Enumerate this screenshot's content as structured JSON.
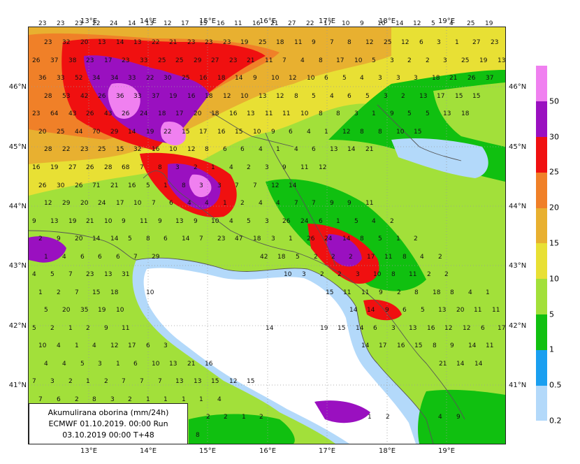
{
  "title_box": {
    "line1": "Akumulirana oborina (mm/24h)",
    "line2": "ECMWF 01.10.2019.  00:00 Run",
    "line3": "03.10.2019 00:00  T+48"
  },
  "axes": {
    "lat_labels": [
      "46°N",
      "45°N",
      "44°N",
      "43°N",
      "42°N",
      "41°N"
    ],
    "lon_labels": [
      "13°E",
      "14°E",
      "15°E",
      "16°E",
      "17°E",
      "18°E",
      "19°E"
    ]
  },
  "colorbar": {
    "labels": [
      "0.2",
      "0.5",
      "1",
      "5",
      "10",
      "15",
      "20",
      "25",
      "30",
      "50"
    ],
    "colors": [
      "#b3d9fa",
      "#1a9ff0",
      "#10c010",
      "#a2e03a",
      "#e8e034",
      "#e8b030",
      "#f08028",
      "#f01010",
      "#9a10c0",
      "#f080f0"
    ]
  },
  "colors": {
    "sea": "#ffffff",
    "land_base": "#7ed65a",
    "coast": "#555555",
    "grid": "#9a9a9a"
  },
  "numbers": [
    "23",
    "23",
    "23",
    "22",
    "24",
    "14",
    "13",
    "12",
    "17",
    "15",
    "16",
    "11",
    "16",
    "21",
    "27",
    "22",
    "17",
    "10",
    "9",
    "10",
    "14",
    "12",
    "5",
    "4",
    "25",
    "19",
    "23",
    "32",
    "20",
    "13",
    "14",
    "13",
    "22",
    "21",
    "23",
    "23",
    "23",
    "19",
    "25",
    "18",
    "11",
    "9",
    "7",
    "8",
    "12",
    "25",
    "12",
    "6",
    "3",
    "1",
    "27",
    "23",
    "26",
    "37",
    "38",
    "23",
    "17",
    "23",
    "33",
    "25",
    "25",
    "29",
    "27",
    "23",
    "21",
    "11",
    "7",
    "4",
    "8",
    "17",
    "10",
    "5",
    "3",
    "2",
    "2",
    "3",
    "25",
    "19",
    "13",
    "36",
    "33",
    "52",
    "34",
    "34",
    "33",
    "22",
    "30",
    "25",
    "16",
    "18",
    "14",
    "9",
    "10",
    "12",
    "10",
    "6",
    "5",
    "4",
    "3",
    "3",
    "3",
    "18",
    "21",
    "26",
    "37",
    "28",
    "53",
    "42",
    "26",
    "36",
    "33",
    "37",
    "19",
    "16",
    "18",
    "12",
    "10",
    "13",
    "12",
    "8",
    "5",
    "4",
    "6",
    "5",
    "3",
    "2",
    "13",
    "17",
    "15",
    "15",
    "23",
    "64",
    "43",
    "26",
    "43",
    "26",
    "24",
    "18",
    "17",
    "20",
    "18",
    "16",
    "13",
    "11",
    "11",
    "10",
    "8",
    "8",
    "3",
    "1",
    "9",
    "5",
    "5",
    "13",
    "18",
    "20",
    "25",
    "44",
    "70",
    "29",
    "14",
    "19",
    "22",
    "15",
    "17",
    "16",
    "15",
    "10",
    "9",
    "6",
    "4",
    "1",
    "12",
    "8",
    "8",
    "10",
    "15",
    "28",
    "22",
    "23",
    "25",
    "15",
    "32",
    "16",
    "10",
    "12",
    "8",
    "6",
    "6",
    "4",
    "1",
    "4",
    "6",
    "13",
    "14",
    "21",
    "16",
    "19",
    "27",
    "26",
    "28",
    "68",
    "7",
    "8",
    "3",
    "2",
    "1",
    "4",
    "2",
    "3",
    "9",
    "11",
    "12",
    "26",
    "30",
    "26",
    "71",
    "21",
    "16",
    "5",
    "1",
    "8",
    "3",
    "3",
    "7",
    "7",
    "12",
    "14",
    "12",
    "29",
    "20",
    "24",
    "17",
    "10",
    "7",
    "6",
    "4",
    "4",
    "1",
    "2",
    "4",
    "4",
    "7",
    "7",
    "9",
    "9",
    "11",
    "9",
    "13",
    "19",
    "21",
    "10",
    "9",
    "11",
    "9",
    "13",
    "9",
    "10",
    "4",
    "5",
    "3",
    "26",
    "24",
    "6",
    "1",
    "5",
    "4",
    "2",
    "2",
    "9",
    "20",
    "14",
    "14",
    "5",
    "8",
    "6",
    "14",
    "7",
    "23",
    "47",
    "18",
    "3",
    "1",
    "26",
    "24",
    "14",
    "8",
    "5",
    "1",
    "2",
    "1",
    "4",
    "6",
    "6",
    "6",
    "7",
    "29",
    "42",
    "18",
    "5",
    "2",
    "2",
    "2",
    "17",
    "11",
    "8",
    "4",
    "2",
    "4",
    "5",
    "7",
    "23",
    "13",
    "31",
    "10",
    "3",
    "2",
    "2",
    "3",
    "10",
    "8",
    "11",
    "2",
    "2",
    "1",
    "2",
    "7",
    "15",
    "18",
    "10",
    "15",
    "11",
    "11",
    "9",
    "2",
    "8",
    "18",
    "8",
    "4",
    "1",
    "5",
    "20",
    "35",
    "19",
    "10",
    "14",
    "14",
    "9",
    "6",
    "5",
    "13",
    "20",
    "11",
    "11",
    "5",
    "2",
    "1",
    "2",
    "9",
    "11",
    "14",
    "19",
    "15",
    "14",
    "6",
    "3",
    "13",
    "16",
    "12",
    "12",
    "6",
    "17",
    "10",
    "4",
    "1",
    "4",
    "12",
    "17",
    "6",
    "3",
    "14",
    "17",
    "16",
    "15",
    "8",
    "9",
    "14",
    "11",
    "4",
    "4",
    "5",
    "3",
    "1",
    "6",
    "10",
    "13",
    "21",
    "16",
    "21",
    "14",
    "14",
    "7",
    "3",
    "2",
    "1",
    "2",
    "7",
    "7",
    "7",
    "13",
    "13",
    "15",
    "12",
    "15",
    "7",
    "6",
    "2",
    "8",
    "3",
    "2",
    "1",
    "1",
    "1",
    "1",
    "4",
    "2",
    "2",
    "1",
    "2",
    "1",
    "2",
    "4",
    "9",
    "8"
  ]
}
